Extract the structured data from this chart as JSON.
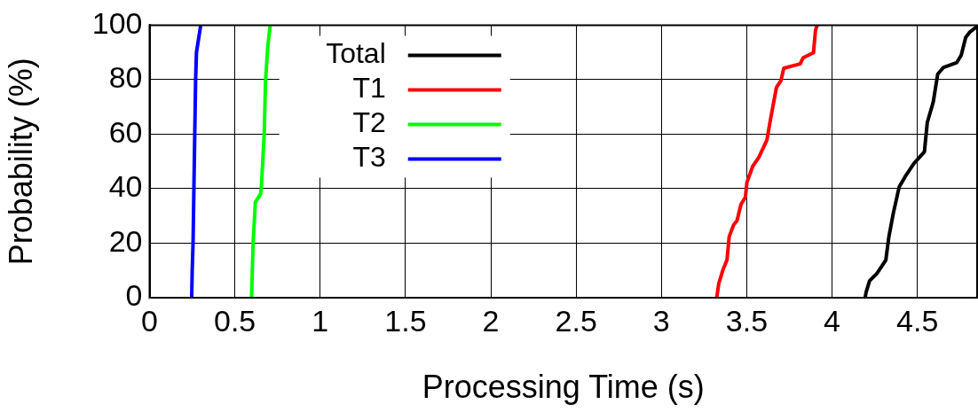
{
  "chart_data": {
    "type": "line",
    "xlabel": "Processing Time (s)",
    "ylabel": "Probability (%)",
    "xlim": [
      0,
      4.85
    ],
    "ylim": [
      0,
      100
    ],
    "xticks": [
      0,
      0.5,
      1,
      1.5,
      2,
      2.5,
      3,
      3.5,
      4,
      4.5
    ],
    "yticks": [
      0,
      20,
      40,
      60,
      80,
      100
    ],
    "grid": true,
    "legend": "top",
    "marker": "none",
    "line_style": "solid",
    "series": [
      {
        "name": "Total",
        "color": "#000000",
        "x": [
          4.194,
          4.199,
          4.22,
          4.263,
          4.315,
          4.333,
          4.359,
          4.393,
          4.428,
          4.48,
          4.541,
          4.558,
          4.593,
          4.619,
          4.653,
          4.731,
          4.757,
          4.783,
          4.809,
          4.844
        ],
        "values": [
          0,
          1.9,
          6.2,
          8.9,
          13.8,
          22.4,
          31,
          40.6,
          44.4,
          49.3,
          53.5,
          64.3,
          71.8,
          82,
          84.5,
          86.3,
          89,
          95.5,
          97.6,
          99.2
        ]
      },
      {
        "name": "T1",
        "color": "#ff0000",
        "x": [
          3.324,
          3.336,
          3.362,
          3.384,
          3.397,
          3.423,
          3.443,
          3.466,
          3.492,
          3.501,
          3.535,
          3.57,
          3.618,
          3.639,
          3.674,
          3.7,
          3.717,
          3.813,
          3.83,
          3.891,
          3.903,
          3.913
        ],
        "values": [
          0,
          5.2,
          10.5,
          13.8,
          22.4,
          26.7,
          28.3,
          34.2,
          36.9,
          42.3,
          48.2,
          51.4,
          57.8,
          65.4,
          77.2,
          79.6,
          84.2,
          85.8,
          88,
          89.9,
          98.2,
          100
        ]
      },
      {
        "name": "T2",
        "color": "#00ff00",
        "x": [
          0.598,
          0.607,
          0.62,
          0.65,
          0.655,
          0.672,
          0.68,
          0.693,
          0.707
        ],
        "values": [
          0,
          20,
          35,
          38,
          40,
          60,
          80,
          92,
          100
        ]
      },
      {
        "name": "T3",
        "color": "#0000ff",
        "x": [
          0.247,
          0.25,
          0.255,
          0.26,
          0.265,
          0.27,
          0.275,
          0.3
        ],
        "values": [
          0,
          10,
          20,
          40,
          60,
          80,
          90,
          100
        ]
      }
    ]
  }
}
